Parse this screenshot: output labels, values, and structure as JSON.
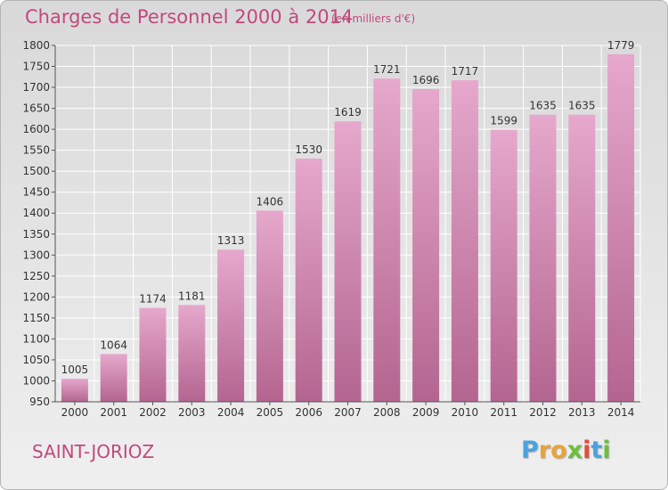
{
  "chart_data": {
    "type": "bar",
    "title": "Charges de Personnel 2000 à 2014",
    "subtitle": "(en milliers d'€)",
    "categories": [
      "2000",
      "2001",
      "2002",
      "2003",
      "2004",
      "2005",
      "2006",
      "2007",
      "2008",
      "2009",
      "2010",
      "2011",
      "2012",
      "2013",
      "2014"
    ],
    "values": [
      1005,
      1064,
      1174,
      1181,
      1313,
      1406,
      1530,
      1619,
      1721,
      1696,
      1717,
      1599,
      1635,
      1635,
      1779
    ],
    "data_labels": [
      "1005",
      "1064",
      "1174",
      "1181",
      "1313",
      "1406",
      "1530",
      "1619",
      "1721",
      "1696",
      "1717",
      "1599",
      "1635",
      "1635",
      "1779"
    ],
    "yticks": [
      950,
      1000,
      1050,
      1100,
      1150,
      1200,
      1250,
      1300,
      1350,
      1400,
      1450,
      1500,
      1550,
      1600,
      1650,
      1700,
      1750,
      1800
    ],
    "ylim": [
      950,
      1800
    ],
    "grid": true,
    "bar_color_top": "#e6a8cc",
    "bar_color_bottom": "#b36590"
  },
  "footer": {
    "place_name": "SAINT-JORIOZ",
    "logo_text": "Proxiti",
    "logo_colors": [
      "#4aa3df",
      "#e8a33c",
      "#e8a33c",
      "#6cbf3c",
      "#e0503c",
      "#4aa3df",
      "#6cbf3c"
    ]
  },
  "colors": {
    "title": "#c2497c",
    "grid": "#ffffff",
    "axis": "#555555"
  }
}
